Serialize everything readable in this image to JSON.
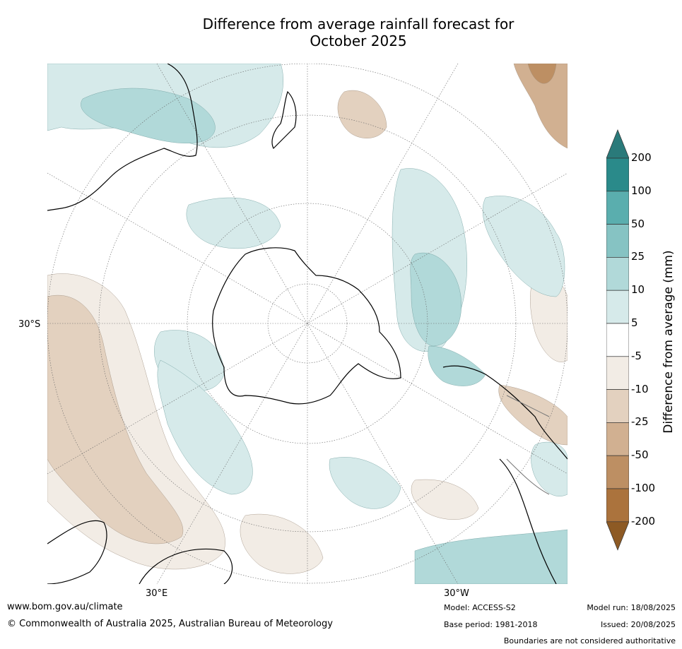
{
  "title_line1": "Difference from average rainfall forecast for",
  "title_line2": "October 2025",
  "lat_label": "30°S",
  "lon_labels": {
    "east": "30°E",
    "west": "30°W"
  },
  "colorbar": {
    "title": "Difference from average (mm)",
    "labels": [
      "200",
      "100",
      "50",
      "25",
      "10",
      "5",
      "-5",
      "-10",
      "-25",
      "-50",
      "-100",
      "-200"
    ],
    "colors": [
      "#2a8a8a",
      "#5aaeae",
      "#86c3c3",
      "#b1d9d9",
      "#d6eaea",
      "#ffffff",
      "#f2ece5",
      "#e3d1bf",
      "#d1b091",
      "#bd8f63",
      "#ab733d",
      "#2a7a7a",
      "#8d5a24"
    ]
  },
  "footer": {
    "url": "www.bom.gov.au/climate",
    "copyright": "© Commonwealth of Australia 2025, Australian Bureau of Meteorology",
    "model": "Model: ACCESS-S2",
    "base_period": "Base period: 1981-2018",
    "model_run": "Model run: 18/08/2025",
    "issued": "Issued: 20/08/2025",
    "disclaimer": "Boundaries are not considered authoritative"
  },
  "colors": {
    "wet": "#b1d9d9",
    "dry": "#e3d1bf",
    "coast": "#000000",
    "grid": "#666666"
  }
}
